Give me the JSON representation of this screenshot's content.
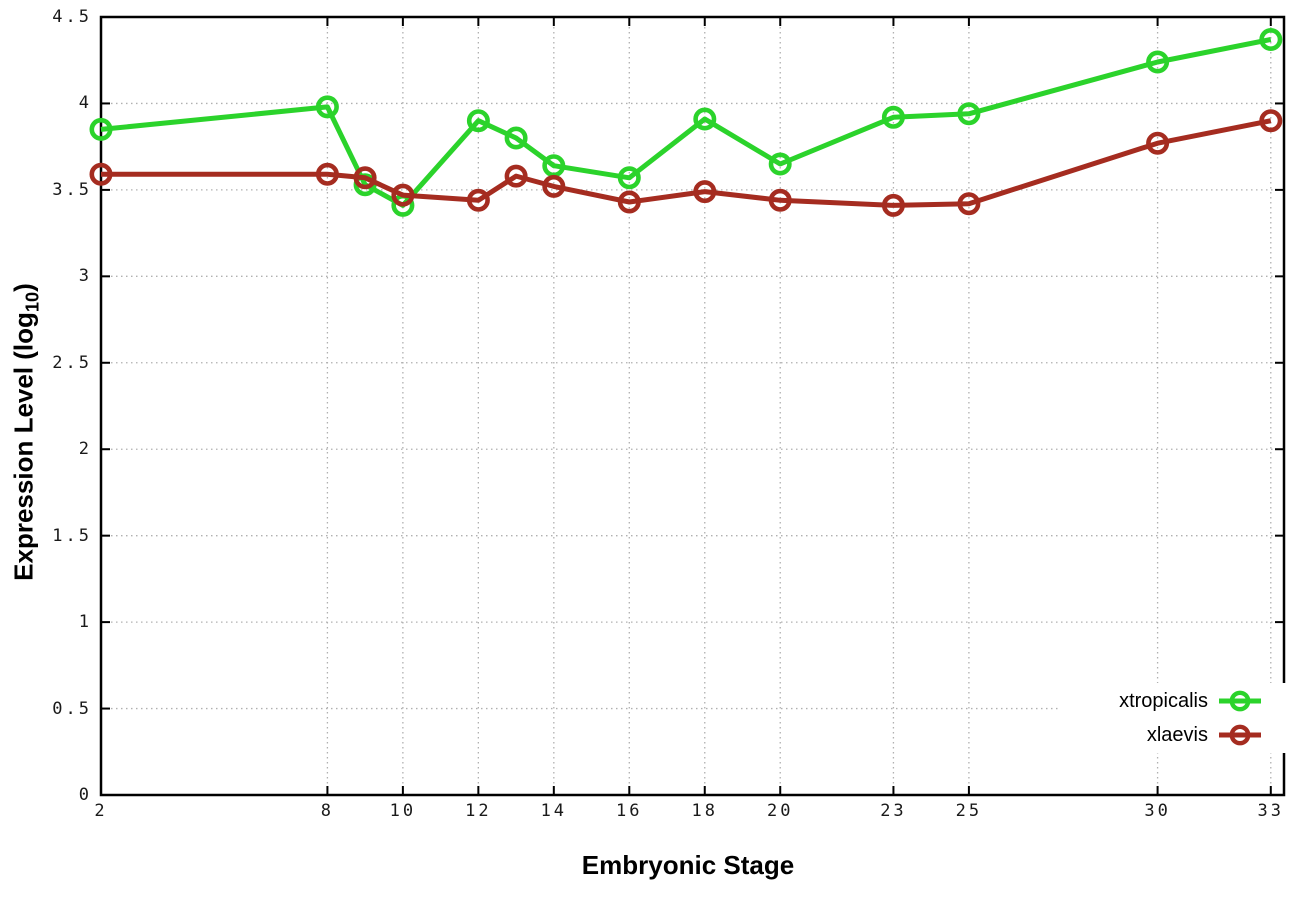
{
  "chart_data": {
    "type": "line",
    "title": "",
    "xlabel": "Embryonic Stage",
    "ylabel": "Expression Level (log10)",
    "ylabel_parts": {
      "pre": "Expression Level (log",
      "sub": "10",
      "post": ")"
    },
    "xlim": [
      2,
      33.35
    ],
    "ylim": [
      0,
      4.5
    ],
    "grid": true,
    "legend_position": "inside-bottom-right",
    "x_ticks": [
      2,
      8,
      10,
      12,
      14,
      16,
      18,
      20,
      23,
      25,
      30,
      33
    ],
    "x_tick_labels": [
      "2",
      "8",
      "10",
      "12",
      "14",
      "16",
      "18",
      "20",
      "23",
      "25",
      "30",
      "33"
    ],
    "y_ticks": [
      0,
      0.5,
      1,
      1.5,
      2,
      2.5,
      3,
      3.5,
      4,
      4.5
    ],
    "y_tick_labels": [
      "0",
      "0.5",
      "1",
      "1.5",
      "2",
      "2.5",
      "3",
      "3.5",
      "4",
      "4.5"
    ],
    "x": [
      2,
      8,
      9,
      10,
      12,
      13,
      14,
      16,
      18,
      20,
      23,
      25,
      30,
      33
    ],
    "series": [
      {
        "name": "xtropicalis",
        "color": "#2bd32b",
        "values": [
          3.85,
          3.98,
          3.53,
          3.41,
          3.9,
          3.8,
          3.64,
          3.57,
          3.91,
          3.65,
          3.92,
          3.94,
          4.24,
          4.37
        ]
      },
      {
        "name": "xlaevis",
        "color": "#a52c20",
        "values": [
          3.59,
          3.59,
          3.57,
          3.47,
          3.44,
          3.58,
          3.52,
          3.43,
          3.49,
          3.44,
          3.41,
          3.42,
          3.77,
          3.9
        ]
      }
    ]
  }
}
